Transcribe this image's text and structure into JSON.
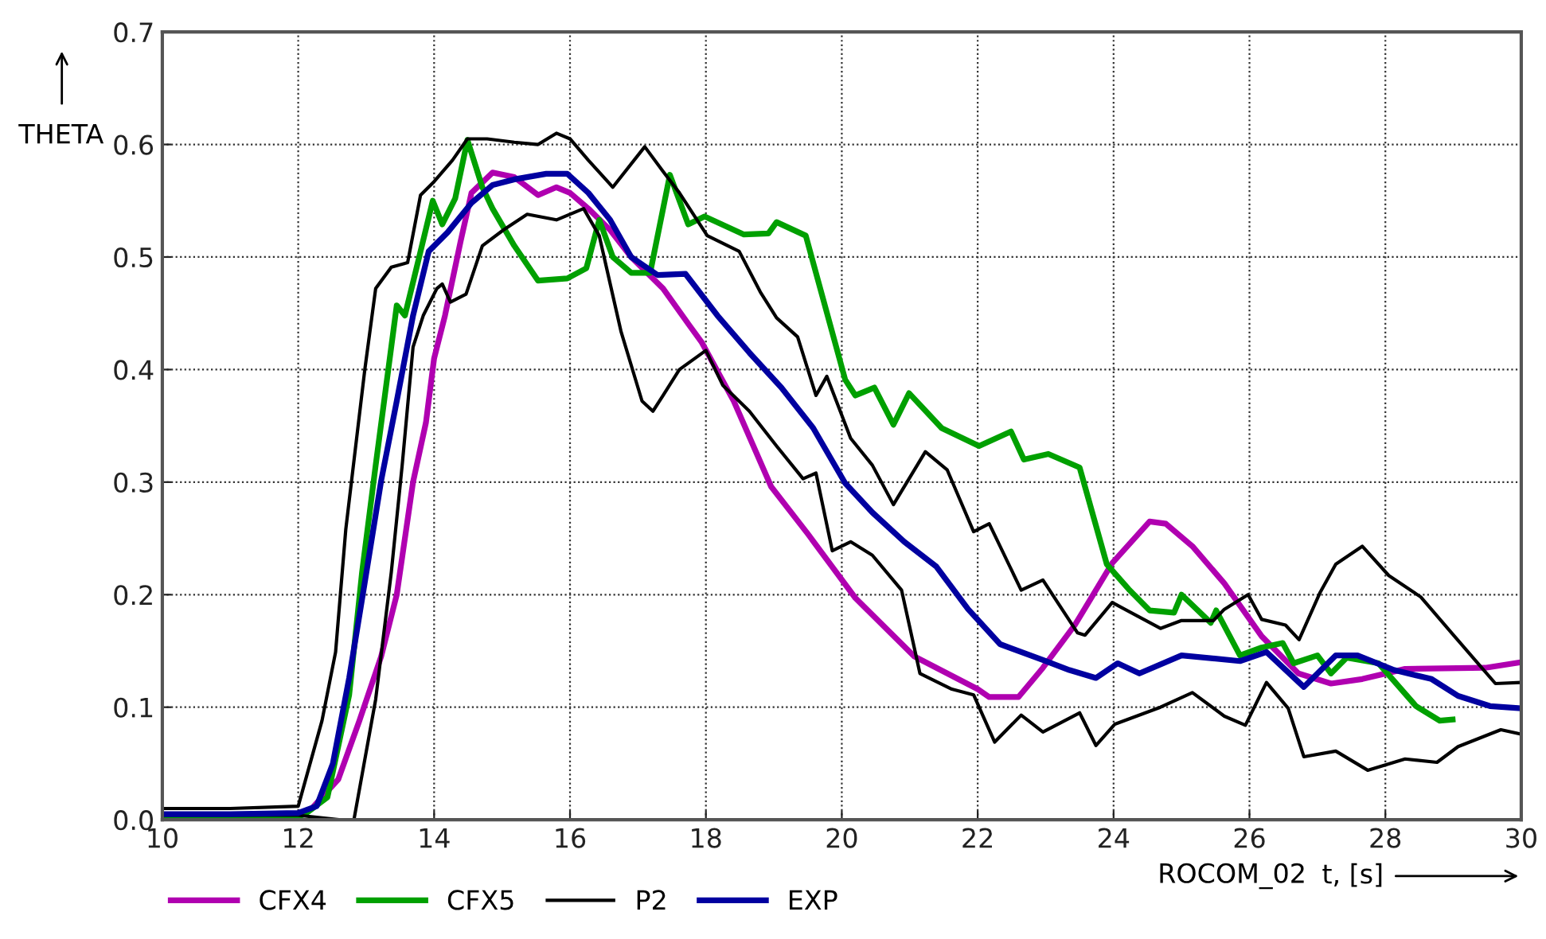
{
  "chart_data": {
    "type": "line",
    "xlabel": "t, [s]",
    "ylabel": "THETA",
    "annotations": [
      "ROCOM_02"
    ],
    "xlim": [
      10,
      30
    ],
    "xticks": [
      10,
      12,
      14,
      16,
      18,
      20,
      22,
      24,
      26,
      28,
      30
    ],
    "ylim": [
      0,
      0.7
    ],
    "yticks": [
      {
        "value": 0,
        "label": "0.0"
      },
      {
        "value": 0.1,
        "label": "0.1"
      },
      {
        "value": 0.2,
        "label": "0.2"
      },
      {
        "value": 0.3,
        "label": "0.3"
      },
      {
        "value": 0.4,
        "label": "0.4"
      },
      {
        "value": 0.5,
        "label": "0.5"
      },
      {
        "value": 0.6,
        "label": "0.6"
      },
      {
        "value": 0.7,
        "label": "0.7"
      }
    ],
    "grid": true,
    "legend": "bottom",
    "marker": "none",
    "line_style": "solid",
    "series": [
      {
        "name": "CFX4",
        "color": "#b000b0",
        "x": [
          12,
          12.2,
          12.59,
          12.9,
          13.22,
          13.45,
          13.69,
          13.88,
          14.0,
          14.16,
          14.39,
          14.55,
          14.86,
          15.18,
          15.53,
          15.8,
          16.0,
          16.27,
          16.59,
          16.9,
          17.37,
          17.76,
          17.94,
          18.41,
          18.96,
          19.5,
          20.2,
          21.07,
          22.0,
          22.17,
          22.6,
          22.96,
          23.43,
          23.98,
          24.53,
          24.77,
          25.16,
          25.63,
          26.18,
          26.72,
          27.2,
          27.66,
          28.29,
          29.47,
          30.0
        ],
        "values": [
          0.005,
          0.01,
          0.036,
          0.088,
          0.145,
          0.2,
          0.3,
          0.353,
          0.41,
          0.448,
          0.514,
          0.557,
          0.575,
          0.571,
          0.555,
          0.562,
          0.557,
          0.543,
          0.524,
          0.5,
          0.472,
          0.439,
          0.424,
          0.372,
          0.296,
          0.254,
          0.197,
          0.145,
          0.116,
          0.109,
          0.109,
          0.135,
          0.173,
          0.228,
          0.265,
          0.263,
          0.243,
          0.21,
          0.163,
          0.13,
          0.121,
          0.125,
          0.134,
          0.135,
          0.14
        ]
      },
      {
        "name": "CFX5",
        "color": "#00a000",
        "x": [
          10,
          11,
          12,
          12.1,
          12.43,
          12.75,
          12.94,
          13.14,
          13.45,
          13.57,
          13.76,
          13.98,
          14.12,
          14.31,
          14.49,
          14.71,
          14.86,
          15.18,
          15.53,
          15.96,
          16.24,
          16.43,
          16.63,
          16.9,
          17.18,
          17.47,
          17.74,
          17.98,
          18.56,
          18.92,
          19.04,
          19.47,
          20.05,
          20.2,
          20.48,
          20.76,
          20.99,
          21.47,
          22.02,
          22.49,
          22.68,
          23.04,
          23.5,
          23.9,
          24.22,
          24.53,
          24.89,
          25.0,
          25.43,
          25.51,
          25.86,
          26.18,
          26.49,
          26.65,
          27.0,
          27.2,
          27.43,
          27.9,
          28.45,
          28.8,
          28.99
        ],
        "values": [
          0.003,
          0.003,
          0.003,
          0.005,
          0.02,
          0.111,
          0.22,
          0.315,
          0.457,
          0.448,
          0.495,
          0.55,
          0.529,
          0.552,
          0.604,
          0.562,
          0.543,
          0.51,
          0.479,
          0.481,
          0.49,
          0.533,
          0.5,
          0.486,
          0.486,
          0.573,
          0.529,
          0.536,
          0.52,
          0.521,
          0.531,
          0.519,
          0.391,
          0.377,
          0.384,
          0.351,
          0.379,
          0.348,
          0.332,
          0.345,
          0.32,
          0.325,
          0.313,
          0.227,
          0.205,
          0.186,
          0.184,
          0.2,
          0.175,
          0.186,
          0.146,
          0.153,
          0.157,
          0.139,
          0.146,
          0.13,
          0.144,
          0.139,
          0.101,
          0.088,
          0.089
        ]
      },
      {
        "name": "P2",
        "color": "#000000",
        "x": [
          10,
          11,
          12,
          12.35,
          12.55,
          12.7,
          12.98,
          13.14,
          13.37,
          13.61,
          13.8,
          14.0,
          14.27,
          14.49,
          14.78,
          15.18,
          15.53,
          15.8,
          16.0,
          16.27,
          16.63,
          17.1,
          17.37,
          17.61,
          18.02,
          18.49,
          18.8,
          19.04,
          19.35,
          19.62,
          19.78,
          20.13,
          20.45,
          20.76,
          21.23,
          21.55,
          21.94,
          22.17,
          22.64,
          22.96,
          23.47,
          23.58,
          23.98,
          24.69,
          25.0,
          25.47,
          25.63,
          25.98,
          26.18,
          26.53,
          26.73,
          27.04,
          27.27,
          27.66,
          28.05,
          28.52,
          28.99,
          29.39,
          29.62,
          30.0
        ],
        "values": [
          0.01,
          0.01,
          0.012,
          0.088,
          0.149,
          0.258,
          0.4,
          0.472,
          0.491,
          0.495,
          0.555,
          0.567,
          0.586,
          0.605,
          0.605,
          0.602,
          0.6,
          0.61,
          0.605,
          0.586,
          0.562,
          0.598,
          0.576,
          0.557,
          0.519,
          0.505,
          0.469,
          0.446,
          0.429,
          0.377,
          0.394,
          0.339,
          0.315,
          0.28,
          0.327,
          0.311,
          0.256,
          0.263,
          0.204,
          0.213,
          0.166,
          0.164,
          0.193,
          0.17,
          0.177,
          0.177,
          0.187,
          0.2,
          0.178,
          0.173,
          0.16,
          0.202,
          0.227,
          0.243,
          0.217,
          0.198,
          0.165,
          0.137,
          0.121,
          0.122
        ]
      },
      {
        "color": "#000000",
        "x": [
          10,
          11,
          12,
          12.6,
          12.82,
          13.14,
          13.37,
          13.53,
          13.69,
          13.84,
          14.04,
          14.12,
          14.24,
          14.47,
          14.71,
          15.02,
          15.37,
          15.8,
          16.2,
          16.43,
          16.75,
          17.06,
          17.22,
          17.37,
          17.61,
          18.0,
          18.25,
          18.64,
          19.04,
          19.43,
          19.62,
          19.86,
          20.13,
          20.45,
          20.88,
          21.15,
          21.62,
          21.94,
          22.25,
          22.64,
          22.96,
          23.5,
          23.74,
          24.02,
          24.69,
          25.16,
          25.63,
          25.94,
          26.25,
          26.57,
          26.8,
          27.27,
          27.74,
          28.29,
          28.76,
          29.07,
          29.7,
          30.0
        ],
        "values": [
          0.004,
          0.004,
          0.004,
          0.0,
          0.0,
          0.107,
          0.22,
          0.315,
          0.42,
          0.448,
          0.472,
          0.476,
          0.46,
          0.467,
          0.51,
          0.524,
          0.538,
          0.533,
          0.543,
          0.519,
          0.434,
          0.372,
          0.363,
          0.377,
          0.4,
          0.417,
          0.386,
          0.363,
          0.332,
          0.303,
          0.308,
          0.239,
          0.247,
          0.235,
          0.204,
          0.13,
          0.116,
          0.111,
          0.069,
          0.093,
          0.078,
          0.095,
          0.066,
          0.085,
          0.1,
          0.113,
          0.092,
          0.084,
          0.122,
          0.099,
          0.056,
          0.061,
          0.044,
          0.054,
          0.051,
          0.065,
          0.08,
          0.076
        ]
      },
      {
        "name": "EXP",
        "color": "#0000a0",
        "x": [
          10,
          11,
          12,
          12.27,
          12.51,
          12.75,
          12.98,
          13.22,
          13.45,
          13.69,
          13.92,
          14.2,
          14.55,
          14.86,
          15.18,
          15.65,
          15.96,
          16.27,
          16.59,
          16.9,
          17.29,
          17.7,
          18.17,
          18.64,
          19.11,
          19.58,
          20.05,
          20.45,
          20.92,
          21.39,
          21.86,
          22.33,
          22.96,
          23.35,
          23.74,
          24.06,
          24.38,
          25.0,
          25.86,
          26.25,
          26.8,
          27.27,
          27.59,
          28.13,
          28.68,
          29.07,
          29.54,
          30.0
        ],
        "values": [
          0.005,
          0.005,
          0.006,
          0.012,
          0.05,
          0.126,
          0.211,
          0.301,
          0.372,
          0.448,
          0.505,
          0.522,
          0.548,
          0.564,
          0.569,
          0.574,
          0.574,
          0.557,
          0.533,
          0.5,
          0.484,
          0.485,
          0.448,
          0.415,
          0.384,
          0.348,
          0.299,
          0.273,
          0.247,
          0.225,
          0.187,
          0.156,
          0.142,
          0.133,
          0.126,
          0.139,
          0.13,
          0.146,
          0.141,
          0.149,
          0.118,
          0.146,
          0.146,
          0.133,
          0.125,
          0.11,
          0.101,
          0.099
        ]
      }
    ]
  }
}
